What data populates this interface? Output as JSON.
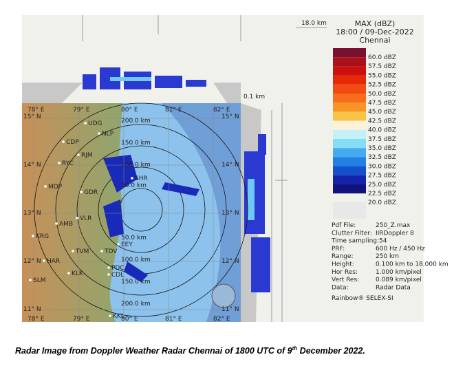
{
  "top_scale_label": "18.0 km",
  "side_scale_label": "0.1 km",
  "legend": {
    "title": "MAX (dBZ)",
    "time": "18:00 / 09-Dec-2022",
    "station": "Chennai",
    "entries": [
      {
        "label": "60.0 dBZ",
        "color": "#7a1030"
      },
      {
        "label": "57.5 dBZ",
        "color": "#a8101c"
      },
      {
        "label": "55.0 dBZ",
        "color": "#cc1010"
      },
      {
        "label": "52.5 dBZ",
        "color": "#e42808"
      },
      {
        "label": "50.0 dBZ",
        "color": "#f24a10"
      },
      {
        "label": "47.5 dBZ",
        "color": "#f86c1c"
      },
      {
        "label": "45.0 dBZ",
        "color": "#f89424"
      },
      {
        "label": "42.5 dBZ",
        "color": "#f8c448"
      },
      {
        "label": "40.0 dBZ",
        "color": "#fdf2d8"
      },
      {
        "label": "37.5 dBZ",
        "color": "#c4f0fa"
      },
      {
        "label": "35.0 dBZ",
        "color": "#84dcf6"
      },
      {
        "label": "32.5 dBZ",
        "color": "#44acee"
      },
      {
        "label": "30.0 dBZ",
        "color": "#2280e0"
      },
      {
        "label": "27.5 dBZ",
        "color": "#1450cc"
      },
      {
        "label": "25.0 dBZ",
        "color": "#1424a8"
      },
      {
        "label": "22.5 dBZ",
        "color": "#12127c"
      },
      {
        "label": "20.0 dBZ",
        "color": "#e8e8e8"
      }
    ]
  },
  "info": [
    {
      "key": "Pdf File:",
      "value": "250_Z.max"
    },
    {
      "key": "Clutter Filter:",
      "value": "IIRDoppler 8"
    },
    {
      "key": "Time sampling:54",
      "value": ""
    },
    {
      "key": "PRF:",
      "value": "600 Hz / 450 Hz"
    },
    {
      "key": "Range:",
      "value": "250 km"
    },
    {
      "key": "Height:",
      "value": "0.100 km to 18.000 km"
    },
    {
      "key": "Hor Res:",
      "value": "1.000 km/pixel"
    },
    {
      "key": "Vert Res:",
      "value": "0.089 km/pixel"
    },
    {
      "key": "Data:",
      "value": "Radar Data"
    }
  ],
  "vendor": "Rainbow® SELEX-SI",
  "map": {
    "longitudes": [
      "78° E",
      "79° E",
      "80° E",
      "81° E",
      "82° E"
    ],
    "latitudes": [
      "15° N",
      "14° N",
      "13° N",
      "12° N",
      "11° N"
    ],
    "ranges": [
      "200.0 km",
      "150.0 km",
      "100.0 km",
      "50.0 km",
      "50.0 km",
      "100.0 km",
      "150.0 km",
      "200.0 km"
    ],
    "places": [
      "UDG",
      "NLP",
      "CDP",
      "RJM",
      "RYC",
      "MDP",
      "GDR",
      "SHR",
      "VLR",
      "AMB",
      "KRG",
      "EEY",
      "TVM",
      "TDV",
      "HAR",
      "PDC",
      "CDL",
      "KLK",
      "SLM",
      "KKL"
    ]
  },
  "caption": {
    "text": "Radar Image from Doppler Weather Radar Chennai of 1800 UTC of 9",
    "sup": "th",
    "end": " December 2022."
  }
}
